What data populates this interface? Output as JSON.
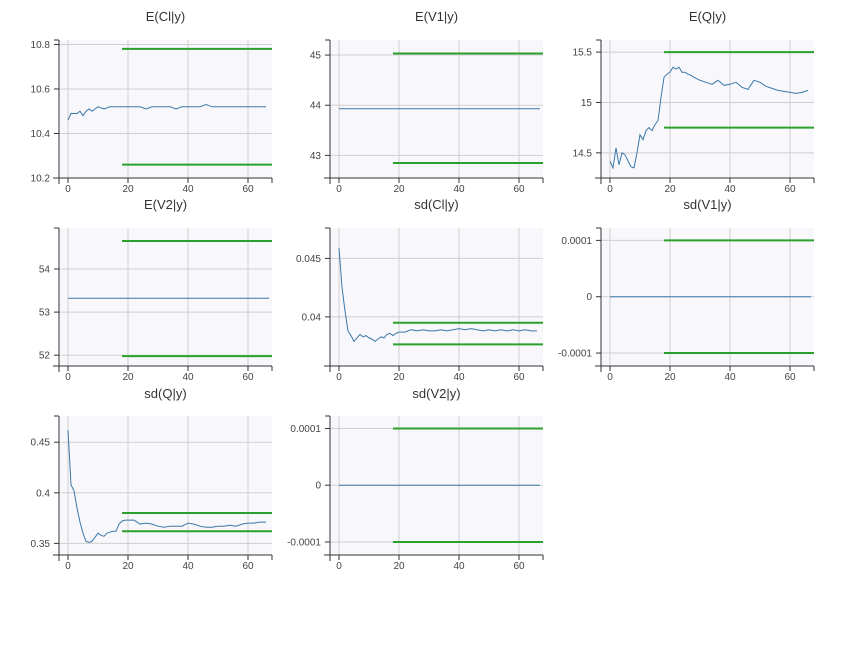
{
  "colors": {
    "plot_bg": "#f8f8fc",
    "grid": "#cfcfcf",
    "series": "#3a78a8",
    "band": "#2ca02c",
    "axis": "#333333"
  },
  "chart_data": [
    {
      "type": "line",
      "title": "E(Cl|y)",
      "xlim": [
        -3,
        68
      ],
      "ylim": [
        10.2,
        10.82
      ],
      "xticks": [
        0,
        20,
        40,
        60
      ],
      "yticks": [
        10.2,
        10.4,
        10.6,
        10.8
      ],
      "ytick_labels": [
        "10.2",
        "10.4",
        "10.6",
        "10.8"
      ],
      "series": [
        {
          "x": [
            0,
            1,
            2,
            3,
            4,
            5,
            6,
            7,
            8,
            9,
            10,
            12,
            14,
            16,
            18,
            20,
            22,
            24,
            26,
            28,
            30,
            32,
            34,
            36,
            38,
            40,
            42,
            44,
            46,
            48,
            50,
            52,
            54,
            56,
            58,
            60,
            62,
            64,
            66
          ],
          "y": [
            10.46,
            10.49,
            10.49,
            10.49,
            10.5,
            10.48,
            10.5,
            10.51,
            10.5,
            10.51,
            10.52,
            10.51,
            10.52,
            10.52,
            10.52,
            10.52,
            10.52,
            10.52,
            10.51,
            10.52,
            10.52,
            10.52,
            10.52,
            10.51,
            10.52,
            10.52,
            10.52,
            10.52,
            10.53,
            10.52,
            10.52,
            10.52,
            10.52,
            10.52,
            10.52,
            10.52,
            10.52,
            10.52,
            10.52
          ]
        }
      ],
      "bands": [
        {
          "y": 10.78,
          "x": [
            18,
            68
          ]
        },
        {
          "y": 10.26,
          "x": [
            18,
            68
          ]
        }
      ]
    },
    {
      "type": "line",
      "title": "E(V1|y)",
      "xlim": [
        -3,
        68
      ],
      "ylim": [
        42.55,
        45.3
      ],
      "xticks": [
        0,
        20,
        40,
        60
      ],
      "yticks": [
        43,
        44,
        45
      ],
      "ytick_labels": [
        "43",
        "44",
        "45"
      ],
      "series": [
        {
          "x": [
            0,
            67
          ],
          "y": [
            43.93,
            43.93
          ]
        }
      ],
      "bands": [
        {
          "y": 45.03,
          "x": [
            18,
            68
          ]
        },
        {
          "y": 42.85,
          "x": [
            18,
            68
          ]
        }
      ]
    },
    {
      "type": "line",
      "title": "E(Q|y)",
      "xlim": [
        -3,
        68
      ],
      "ylim": [
        14.25,
        15.62
      ],
      "xticks": [
        0,
        20,
        40,
        60
      ],
      "yticks": [
        14.5,
        15,
        15.5
      ],
      "ytick_labels": [
        "14.5",
        "15",
        "15.5"
      ],
      "series": [
        {
          "x": [
            0,
            1,
            2,
            3,
            4,
            5,
            6,
            7,
            8,
            9,
            10,
            11,
            12,
            13,
            14,
            15,
            16,
            17,
            18,
            19,
            20,
            21,
            22,
            23,
            24,
            25,
            26,
            27,
            28,
            30,
            32,
            34,
            36,
            38,
            40,
            42,
            44,
            46,
            48,
            50,
            52,
            54,
            56,
            58,
            60,
            62,
            64,
            66
          ],
          "y": [
            14.42,
            14.35,
            14.55,
            14.38,
            14.5,
            14.48,
            14.42,
            14.36,
            14.35,
            14.5,
            14.68,
            14.63,
            14.72,
            14.75,
            14.72,
            14.78,
            14.82,
            15.05,
            15.25,
            15.28,
            15.3,
            15.35,
            15.33,
            15.35,
            15.3,
            15.3,
            15.28,
            15.27,
            15.25,
            15.22,
            15.2,
            15.18,
            15.22,
            15.17,
            15.18,
            15.2,
            15.15,
            15.13,
            15.22,
            15.2,
            15.16,
            15.14,
            15.12,
            15.11,
            15.1,
            15.09,
            15.1,
            15.12
          ]
        }
      ],
      "bands": [
        {
          "y": 15.5,
          "x": [
            18,
            68
          ]
        },
        {
          "y": 14.75,
          "x": [
            18,
            68
          ]
        }
      ]
    },
    {
      "type": "line",
      "title": "E(V2|y)",
      "xlim": [
        -3,
        68
      ],
      "ylim": [
        51.75,
        54.95
      ],
      "xticks": [
        0,
        20,
        40,
        60
      ],
      "yticks": [
        52,
        53,
        54
      ],
      "ytick_labels": [
        "52",
        "53",
        "54"
      ],
      "series": [
        {
          "x": [
            0,
            67
          ],
          "y": [
            53.32,
            53.32
          ]
        }
      ],
      "bands": [
        {
          "y": 54.65,
          "x": [
            18,
            68
          ]
        },
        {
          "y": 51.98,
          "x": [
            18,
            68
          ]
        }
      ]
    },
    {
      "type": "line",
      "title": "sd(Cl|y)",
      "xlim": [
        -3,
        68
      ],
      "ylim": [
        0.0358,
        0.0476
      ],
      "xticks": [
        0,
        20,
        40,
        60
      ],
      "yticks": [
        0.04,
        0.045
      ],
      "ytick_labels": [
        "0.04",
        "0.045"
      ],
      "series": [
        {
          "x": [
            0,
            1,
            2,
            3,
            4,
            5,
            6,
            7,
            8,
            9,
            10,
            11,
            12,
            13,
            14,
            15,
            16,
            17,
            18,
            19,
            20,
            22,
            24,
            26,
            28,
            30,
            32,
            34,
            36,
            38,
            40,
            42,
            44,
            46,
            48,
            50,
            52,
            54,
            56,
            58,
            60,
            62,
            64,
            66
          ],
          "y": [
            0.0459,
            0.0425,
            0.0405,
            0.0388,
            0.0384,
            0.0379,
            0.0382,
            0.0385,
            0.0383,
            0.0384,
            0.0382,
            0.0381,
            0.0379,
            0.0381,
            0.0383,
            0.0382,
            0.0385,
            0.0386,
            0.0384,
            0.0386,
            0.0387,
            0.0387,
            0.0389,
            0.0388,
            0.0389,
            0.0388,
            0.0388,
            0.0389,
            0.0388,
            0.0389,
            0.039,
            0.0389,
            0.039,
            0.0389,
            0.0388,
            0.0389,
            0.0388,
            0.0389,
            0.0388,
            0.0389,
            0.0388,
            0.0389,
            0.0388,
            0.0388
          ]
        }
      ],
      "bands": [
        {
          "y": 0.0395,
          "x": [
            18,
            68
          ]
        },
        {
          "y": 0.03765,
          "x": [
            18,
            68
          ]
        }
      ]
    },
    {
      "type": "line",
      "title": "sd(V1|y)",
      "xlim": [
        -3,
        68
      ],
      "ylim": [
        -0.000123,
        0.000122
      ],
      "xticks": [
        0,
        20,
        40,
        60
      ],
      "yticks": [
        -0.0001,
        0,
        0.0001
      ],
      "ytick_labels": [
        "-0.0001",
        "0",
        "0.0001"
      ],
      "series": [
        {
          "x": [
            0,
            67
          ],
          "y": [
            0,
            0
          ]
        }
      ],
      "bands": [
        {
          "y": 0.0001,
          "x": [
            18,
            68
          ]
        },
        {
          "y": -0.0001,
          "x": [
            18,
            68
          ]
        }
      ]
    },
    {
      "type": "line",
      "title": "sd(Q|y)",
      "xlim": [
        -3,
        68
      ],
      "ylim": [
        0.3385,
        0.4759
      ],
      "xticks": [
        0,
        20,
        40,
        60
      ],
      "yticks": [
        0.35,
        0.4,
        0.45
      ],
      "ytick_labels": [
        "0.35",
        "0.4",
        "0.45"
      ],
      "series": [
        {
          "x": [
            0,
            1,
            2,
            3,
            4,
            5,
            6,
            7,
            8,
            9,
            10,
            11,
            12,
            13,
            14,
            15,
            16,
            17,
            18,
            19,
            20,
            22,
            24,
            26,
            28,
            30,
            32,
            34,
            36,
            38,
            40,
            42,
            44,
            46,
            48,
            50,
            52,
            54,
            56,
            58,
            60,
            62,
            64,
            66
          ],
          "y": [
            0.462,
            0.408,
            0.402,
            0.385,
            0.371,
            0.36,
            0.352,
            0.351,
            0.352,
            0.356,
            0.36,
            0.358,
            0.357,
            0.36,
            0.361,
            0.362,
            0.362,
            0.369,
            0.372,
            0.373,
            0.373,
            0.373,
            0.369,
            0.37,
            0.369,
            0.367,
            0.366,
            0.367,
            0.367,
            0.367,
            0.37,
            0.369,
            0.367,
            0.366,
            0.366,
            0.367,
            0.367,
            0.368,
            0.367,
            0.369,
            0.37,
            0.37,
            0.371,
            0.371
          ]
        }
      ],
      "bands": [
        {
          "y": 0.38,
          "x": [
            18,
            68
          ]
        },
        {
          "y": 0.362,
          "x": [
            18,
            68
          ]
        }
      ]
    },
    {
      "type": "line",
      "title": "sd(V2|y)",
      "xlim": [
        -3,
        68
      ],
      "ylim": [
        -0.000123,
        0.000122
      ],
      "xticks": [
        0,
        20,
        40,
        60
      ],
      "yticks": [
        -0.0001,
        0,
        0.0001
      ],
      "ytick_labels": [
        "-0.0001",
        "0",
        "0.0001"
      ],
      "series": [
        {
          "x": [
            0,
            67
          ],
          "y": [
            0,
            0
          ]
        }
      ],
      "bands": [
        {
          "y": 0.0001,
          "x": [
            18,
            68
          ]
        },
        {
          "y": -0.0001,
          "x": [
            18,
            68
          ]
        }
      ]
    }
  ]
}
